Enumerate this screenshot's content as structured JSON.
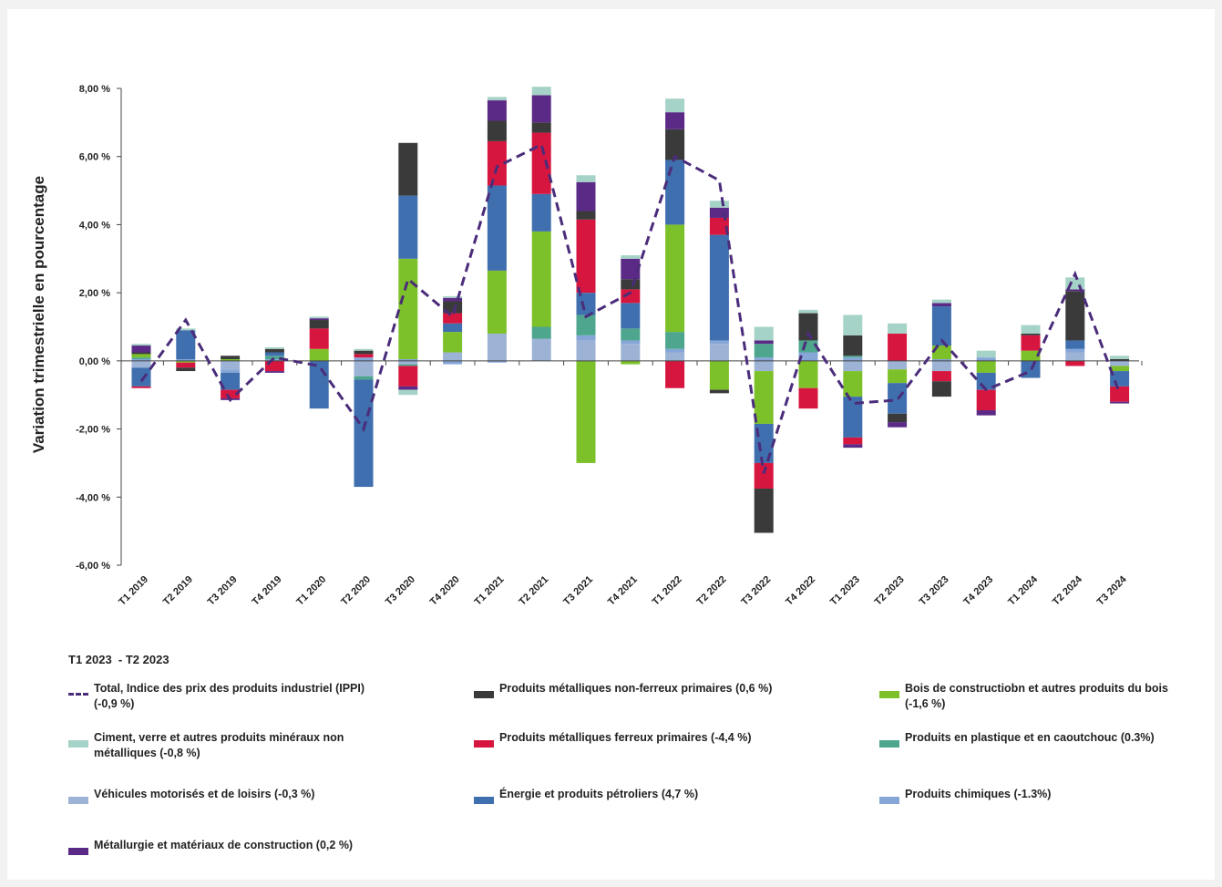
{
  "chart_data": {
    "type": "stacked-bar-line",
    "ylabel": "Variation trimestrielle en pourcentage",
    "legend_title": "T1 2023  - T2 2023",
    "categories": [
      "T1 2019",
      "T2 2019",
      "T3 2019",
      "T4 2019",
      "T1 2020",
      "T2 2020",
      "T3 2020",
      "T4 2020",
      "T1 2021",
      "T2 2021",
      "T3 2021",
      "T4 2021",
      "T1 2022",
      "T2 2022",
      "T3 2022",
      "T4 2022",
      "T1 2023",
      "T2 2023",
      "T3 2023",
      "T4 2023",
      "T1 2024",
      "T2 2024",
      "T3 2024"
    ],
    "ylim": [
      -6,
      8
    ],
    "yticks": [
      {
        "value": 8,
        "label": "8,00 %"
      },
      {
        "value": 6,
        "label": "6,00 %"
      },
      {
        "value": 4,
        "label": "4,00 %"
      },
      {
        "value": 2,
        "label": "2,00 %"
      },
      {
        "value": 0,
        "label": "0,00 %"
      },
      {
        "value": -2,
        "label": "-2,00 %"
      },
      {
        "value": -4,
        "label": "-4,00 %"
      },
      {
        "value": -6,
        "label": "-6,00 %"
      }
    ],
    "series": [
      {
        "name": "Total, Indice des prix des produits industriel (IPPI) (-0,9 %)",
        "color": "#4b2c7a",
        "kind": "line",
        "values": [
          -0.6,
          1.2,
          -1.15,
          0.1,
          -0.15,
          -2.0,
          2.4,
          1.3,
          5.7,
          6.35,
          1.3,
          2.0,
          6.0,
          5.3,
          -3.3,
          0.8,
          -1.25,
          -1.15,
          0.6,
          -0.85,
          -0.3,
          2.55,
          -0.95
        ]
      },
      {
        "name": "Produits métalliques non-ferreux primaires (0,6 %)",
        "color": "#3a3a3a",
        "kind": "bar",
        "values": [
          0.05,
          -0.1,
          0.1,
          0.1,
          0.25,
          0.1,
          1.55,
          0.35,
          0.6,
          0.3,
          0.25,
          0.3,
          0.9,
          -0.1,
          -1.3,
          0.8,
          0.6,
          -0.25,
          -0.45,
          0,
          0.05,
          1.45,
          0.05
        ]
      },
      {
        "name": "Bois de constructiobn et autres produits du bois (-1,6 %)",
        "color": "#7dc12a",
        "kind": "bar",
        "values": [
          0.1,
          -0.05,
          0.05,
          0,
          0.35,
          0,
          2.95,
          0.6,
          1.85,
          2.8,
          -3.0,
          -0.1,
          3.15,
          -0.85,
          -1.55,
          -0.8,
          -0.75,
          -0.4,
          0.4,
          -0.35,
          0.3,
          0,
          -0.15
        ]
      },
      {
        "name": "Ciment, verre et autres produits minéraux non métalliques (-0,8 %)",
        "color": "#a6d3c8",
        "kind": "bar",
        "values": [
          0.05,
          0.05,
          0,
          0.05,
          0.05,
          0.05,
          -0.15,
          0.05,
          0.1,
          0.25,
          0.2,
          0.1,
          0.4,
          0.2,
          0.4,
          0.1,
          0.6,
          0.3,
          0.1,
          0.2,
          0.25,
          0.35,
          0.1
        ]
      },
      {
        "name": "Produits métalliques ferreux primaires (-4,4 %)",
        "color": "#d7163f",
        "kind": "bar",
        "values": [
          -0.05,
          -0.15,
          -0.25,
          -0.3,
          0.6,
          0.1,
          -0.6,
          0.3,
          1.3,
          1.8,
          2.15,
          0.4,
          -0.8,
          0.5,
          -0.75,
          -0.6,
          -0.2,
          0.8,
          -0.3,
          -0.6,
          0.45,
          -0.15,
          -0.45
        ]
      },
      {
        "name": "Produits en plastique et en caoutchouc (0.3%)",
        "color": "#4ea68f",
        "kind": "bar",
        "values": [
          0.05,
          0,
          0,
          0.1,
          0,
          -0.1,
          -0.05,
          0,
          0,
          0.35,
          0.6,
          0.35,
          0.5,
          0,
          0.4,
          0.35,
          0.05,
          0,
          0,
          0,
          0,
          0,
          0
        ]
      },
      {
        "name": "Véhicules motorisés et de loisirs (-0,3 %)",
        "color": "#9db3d6",
        "kind": "bar",
        "values": [
          -0.2,
          0,
          -0.25,
          0,
          0,
          -0.45,
          -0.1,
          0.25,
          0.8,
          0.65,
          0.6,
          0.5,
          0.25,
          0.5,
          -0.3,
          0,
          -0.3,
          -0.25,
          -0.3,
          0,
          0,
          0.25,
          -0.15
        ]
      },
      {
        "name": "Énergie et produits pétroliers (4,7 %)",
        "color": "#3f6fae",
        "kind": "bar",
        "values": [
          -0.55,
          0.85,
          -0.5,
          0.1,
          -1.4,
          -3.15,
          1.85,
          0.25,
          2.5,
          1.1,
          0.65,
          0.75,
          1.9,
          3.1,
          -1.15,
          0,
          -1.2,
          -0.9,
          1.15,
          -0.5,
          -0.5,
          0.25,
          -0.45
        ]
      },
      {
        "name": "Produits chimiques (-1.3%)",
        "color": "#86a6d8",
        "kind": "bar",
        "values": [
          0.05,
          0.05,
          -0.1,
          0.05,
          0,
          0.1,
          0.05,
          -0.1,
          -0.05,
          0,
          0.15,
          0.1,
          0.1,
          0.1,
          0.1,
          0.25,
          0.1,
          0,
          0.05,
          0.1,
          0,
          0.1,
          0
        ]
      },
      {
        "name": "Métallurgie et matériaux de construction (0,2 %)",
        "color": "#5b2a86",
        "kind": "bar",
        "values": [
          0.2,
          0,
          -0.05,
          -0.05,
          0.05,
          0,
          -0.1,
          0.1,
          0.6,
          0.8,
          0.85,
          0.6,
          0.5,
          0.3,
          0.1,
          0,
          -0.1,
          -0.15,
          0.1,
          -0.15,
          0,
          0.05,
          -0.05
        ]
      }
    ]
  }
}
